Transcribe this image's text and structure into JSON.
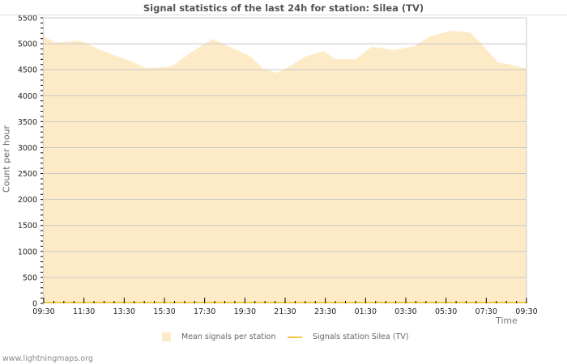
{
  "page": {
    "title": "Signal statistics of the last 24h for station: Silea (TV)",
    "footer": "www.lightningmaps.org"
  },
  "chart_data": {
    "type": "area",
    "title": "Signal statistics of the last 24h for station: Silea (TV)",
    "xlabel": "Time",
    "ylabel": "Count per hour",
    "ylim": [
      0,
      5500
    ],
    "yticks": [
      0,
      500,
      1000,
      1500,
      2000,
      2500,
      3000,
      3500,
      4000,
      4500,
      5000,
      5500
    ],
    "xtick_labels": [
      "09:30",
      "11:30",
      "13:30",
      "15:30",
      "17:30",
      "19:30",
      "21:30",
      "23:30",
      "01:30",
      "03:30",
      "05:30",
      "07:30",
      "09:30"
    ],
    "grid": true,
    "legend_position": "bottom",
    "legend": [
      "Mean signals per station",
      "Signals station Silea (TV)"
    ],
    "colors": {
      "mean_area": "#fdebc8",
      "station_line": "#f5c842",
      "grid": "#c8c8c8"
    },
    "series": [
      {
        "name": "Mean signals per station",
        "type": "area",
        "x_hours": [
          0,
          0.6,
          1.8,
          2.7,
          3.5,
          4.3,
          5.1,
          6.3,
          6.5,
          7.3,
          7.8,
          8.4,
          9.0,
          9.6,
          10.3,
          10.9,
          11.6,
          12.2,
          13.0,
          13.9,
          14.5,
          15.5,
          16.3,
          17.4,
          18.4,
          19.2,
          20.2,
          21.2,
          21.8,
          22.6,
          23.2,
          24.0
        ],
        "values": [
          5140,
          5020,
          5060,
          4900,
          4780,
          4670,
          4530,
          4560,
          4600,
          4830,
          4950,
          5090,
          4980,
          4880,
          4750,
          4520,
          4440,
          4560,
          4750,
          4860,
          4700,
          4700,
          4940,
          4880,
          4950,
          5140,
          5250,
          5220,
          4980,
          4640,
          4600,
          4520
        ]
      },
      {
        "name": "Signals station Silea (TV)",
        "type": "line",
        "x_hours": [
          0,
          24
        ],
        "values": [
          0,
          0
        ]
      }
    ]
  }
}
